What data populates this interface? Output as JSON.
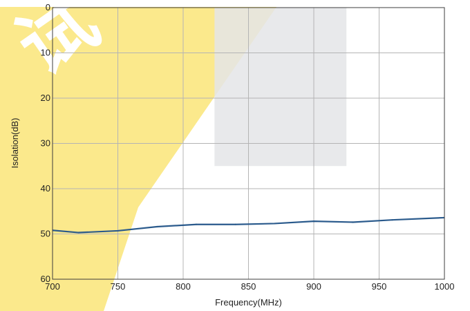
{
  "colors": {
    "line": "#2a5a8c",
    "grid": "#b4b4b4",
    "frame": "#3c3c3c",
    "band": "#e4e5e7",
    "watermark": "#fbe98c",
    "background": "#ffffff"
  },
  "watermark": {
    "text": "试"
  },
  "chart_data": {
    "type": "line",
    "xlabel": "Frequency(MHz)",
    "ylabel": "Isolation(dB)",
    "xlim": [
      700,
      1000
    ],
    "ylim": [
      0,
      60
    ],
    "y_inverted": true,
    "grid": true,
    "x_ticks": [
      "700",
      "750",
      "800",
      "850",
      "900",
      "950",
      "1000"
    ],
    "y_ticks": [
      "0",
      "10",
      "20",
      "30",
      "40",
      "50",
      "60"
    ],
    "highlight_band": {
      "x": [
        824,
        925
      ],
      "y": [
        0,
        35
      ]
    },
    "series": [
      {
        "x": [
          700,
          720,
          750,
          780,
          810,
          840,
          870,
          900,
          930,
          960,
          1000
        ],
        "y": [
          49.2,
          49.7,
          49.3,
          48.4,
          47.9,
          47.9,
          47.7,
          47.2,
          47.4,
          46.9,
          46.4
        ]
      }
    ]
  }
}
